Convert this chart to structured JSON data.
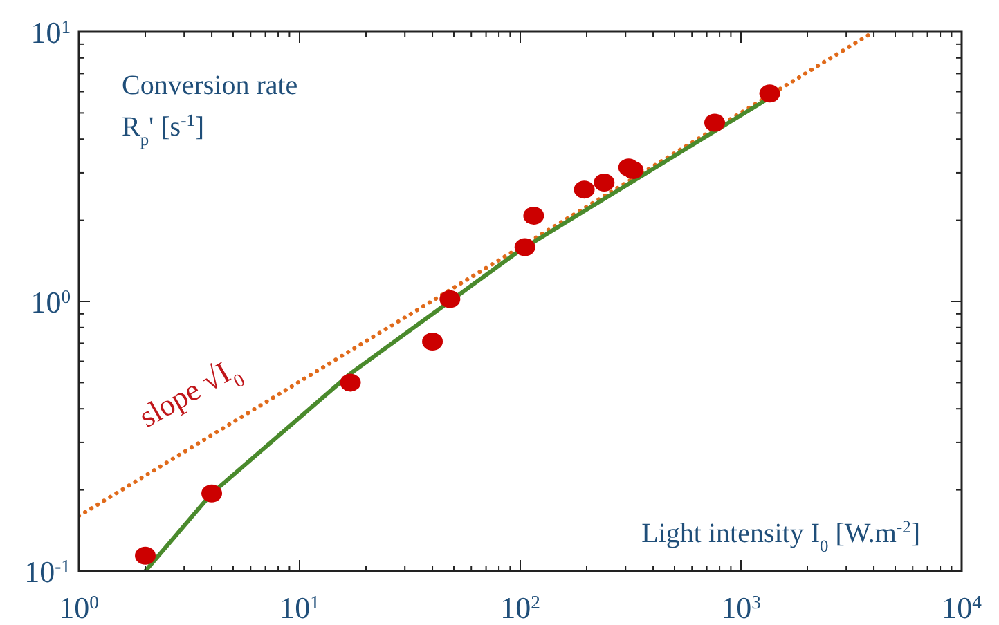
{
  "chart_data": {
    "type": "scatter",
    "xlabel": "Light intensity I$_{0}$ [W.m$^{-2}$]",
    "ylabel": "Conversion rate\nR$_{p}$' [s$^{-1}$]",
    "log": "xy",
    "xlim": [
      1,
      10000
    ],
    "ylim": [
      0.1,
      10
    ],
    "xticks": [
      {
        "value": 1,
        "label": "10$^{0}$"
      },
      {
        "value": 2,
        "label": null
      },
      {
        "value": 3,
        "label": null
      },
      {
        "value": 4,
        "label": null
      },
      {
        "value": 5,
        "label": null
      },
      {
        "value": 6,
        "label": null
      },
      {
        "value": 7,
        "label": null
      },
      {
        "value": 8,
        "label": null
      },
      {
        "value": 9,
        "label": null
      },
      {
        "value": 10,
        "label": "10$^{1}$"
      },
      {
        "value": 20,
        "label": null
      },
      {
        "value": 30,
        "label": null
      },
      {
        "value": 40,
        "label": null
      },
      {
        "value": 50,
        "label": null
      },
      {
        "value": 60,
        "label": null
      },
      {
        "value": 70,
        "label": null
      },
      {
        "value": 80,
        "label": null
      },
      {
        "value": 90,
        "label": null
      },
      {
        "value": 100,
        "label": "10$^{2}$"
      },
      {
        "value": 200,
        "label": null
      },
      {
        "value": 300,
        "label": null
      },
      {
        "value": 400,
        "label": null
      },
      {
        "value": 500,
        "label": null
      },
      {
        "value": 600,
        "label": null
      },
      {
        "value": 700,
        "label": null
      },
      {
        "value": 800,
        "label": null
      },
      {
        "value": 900,
        "label": null
      },
      {
        "value": 1000,
        "label": "10$^{3}$"
      },
      {
        "value": 2000,
        "label": null
      },
      {
        "value": 3000,
        "label": null
      },
      {
        "value": 4000,
        "label": null
      },
      {
        "value": 5000,
        "label": null
      },
      {
        "value": 6000,
        "label": null
      },
      {
        "value": 7000,
        "label": null
      },
      {
        "value": 8000,
        "label": null
      },
      {
        "value": 9000,
        "label": null
      },
      {
        "value": 10000,
        "label": "10$^{4}$"
      }
    ],
    "yticks": [
      {
        "value": 0.1,
        "label": "10$^{-1}$"
      },
      {
        "value": 0.2,
        "label": null
      },
      {
        "value": 0.3,
        "label": null
      },
      {
        "value": 0.4,
        "label": null
      },
      {
        "value": 0.5,
        "label": null
      },
      {
        "value": 0.6,
        "label": null
      },
      {
        "value": 0.7,
        "label": null
      },
      {
        "value": 0.8,
        "label": null
      },
      {
        "value": 0.9,
        "label": null
      },
      {
        "value": 1,
        "label": "10$^{0}$"
      },
      {
        "value": 2,
        "label": null
      },
      {
        "value": 3,
        "label": null
      },
      {
        "value": 4,
        "label": null
      },
      {
        "value": 5,
        "label": null
      },
      {
        "value": 6,
        "label": null
      },
      {
        "value": 7,
        "label": null
      },
      {
        "value": 8,
        "label": null
      },
      {
        "value": 9,
        "label": null
      },
      {
        "value": 10,
        "label": "10$^{1}$"
      }
    ],
    "grid": false,
    "annotations": [
      "slope √I$_{0}$"
    ],
    "series": [
      {
        "type": "line",
        "color": "#e06a1a",
        "line_style": "dotted",
        "x": [
          1,
          4000
        ],
        "values": [
          0.16,
          10
        ]
      },
      {
        "type": "line",
        "color": "#4a8a2c",
        "line_style": "solid",
        "x": [
          2,
          4,
          17,
          100,
          1350
        ],
        "values": [
          0.1,
          0.194,
          0.54,
          1.55,
          5.7
        ]
      },
      {
        "color": "#cc0000",
        "marker": "circle",
        "x": [
          2,
          4,
          17,
          40,
          48,
          105,
          115,
          195,
          240,
          310,
          325,
          760,
          1350
        ],
        "values": [
          0.114,
          0.194,
          0.5,
          0.71,
          1.02,
          1.59,
          2.08,
          2.6,
          2.76,
          3.14,
          3.07,
          4.6,
          5.9
        ]
      }
    ]
  }
}
